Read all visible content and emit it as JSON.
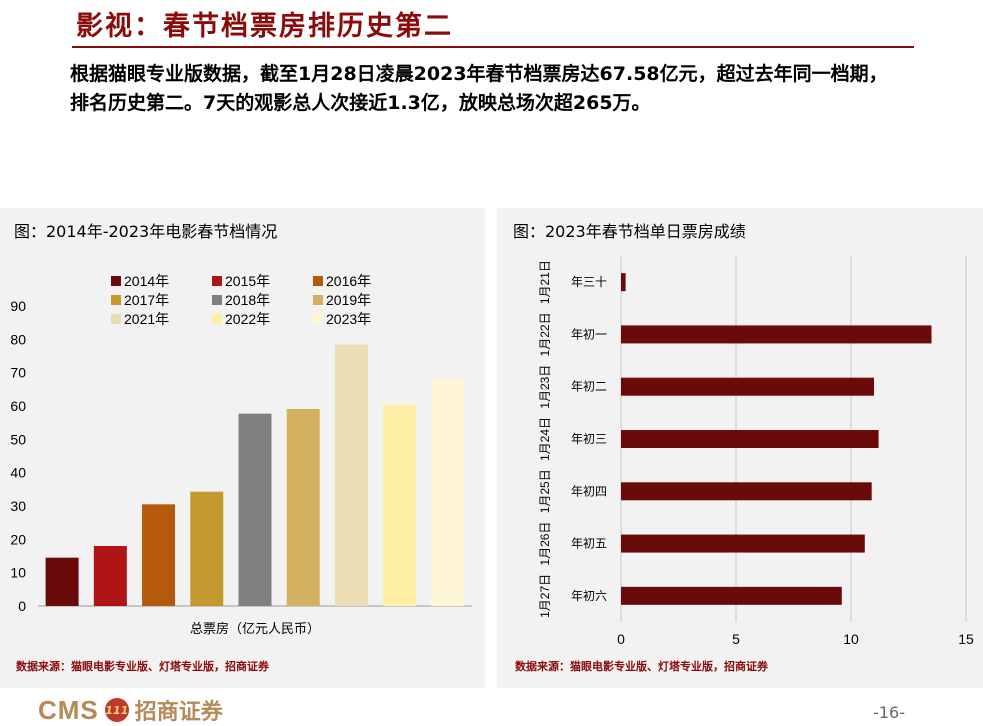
{
  "slide": {
    "title": "影视：春节档票房排历史第二",
    "intro": "根据猫眼专业版数据，截至1月28日凌晨2023年春节档票房达67.58亿元，超过去年同一档期，排名历史第二。7天的观影总人次接近1.3亿，放映总场次超265万。",
    "page_number": "-16-",
    "logo": {
      "brand": "CMS",
      "badge": "111",
      "name": "招商证券"
    }
  },
  "panels": {
    "left": {
      "title": "图：2014年-2023年电影春节档情况",
      "source": "数据来源：猫眼电影专业版、灯塔专业版，招商证券"
    },
    "right": {
      "title": "图：2023年春节档单日票房成绩",
      "source": "数据来源：猫眼电影专业版、灯塔专业版，招商证券"
    }
  },
  "chart_data": [
    {
      "type": "bar",
      "xlabel": "总票房（亿元人民币）",
      "ylim": [
        0,
        90
      ],
      "yticks": [
        0,
        10,
        20,
        30,
        40,
        50,
        60,
        70,
        80,
        90
      ],
      "grid": false,
      "legend": "top-left",
      "series": [
        {
          "name": "2014年",
          "values": [
            14.5
          ],
          "color": "#6b0a0a"
        },
        {
          "name": "2015年",
          "values": [
            18
          ],
          "color": "#b01414"
        },
        {
          "name": "2016年",
          "values": [
            30.5
          ],
          "color": "#b55a0c"
        },
        {
          "name": "2017年",
          "values": [
            34.3
          ],
          "color": "#c49a2e"
        },
        {
          "name": "2018年",
          "values": [
            57.7
          ],
          "color": "#808080"
        },
        {
          "name": "2019年",
          "values": [
            59.1
          ],
          "color": "#d4b15f"
        },
        {
          "name": "2021年",
          "values": [
            78.4
          ],
          "color": "#eadcb3"
        },
        {
          "name": "2022年",
          "values": [
            60.3
          ],
          "color": "#fdf0a6"
        },
        {
          "name": "2023年",
          "values": [
            67.6
          ],
          "color": "#fff6d6"
        }
      ]
    },
    {
      "type": "bar",
      "orientation": "horizontal",
      "categories": [
        "1月21日",
        "1月22日",
        "1月23日",
        "1月24日",
        "1月25日",
        "1月26日",
        "1月27日"
      ],
      "category_sublabels": [
        "年三十",
        "年初一",
        "年初二",
        "年初三",
        "年初四",
        "年初五",
        "年初六"
      ],
      "values": [
        0.2,
        13.5,
        11.0,
        11.2,
        10.9,
        10.6,
        9.6
      ],
      "xlim": [
        0,
        15
      ],
      "xticks": [
        0,
        5,
        10,
        15
      ],
      "grid": true,
      "color": "#6b0a0a"
    }
  ]
}
